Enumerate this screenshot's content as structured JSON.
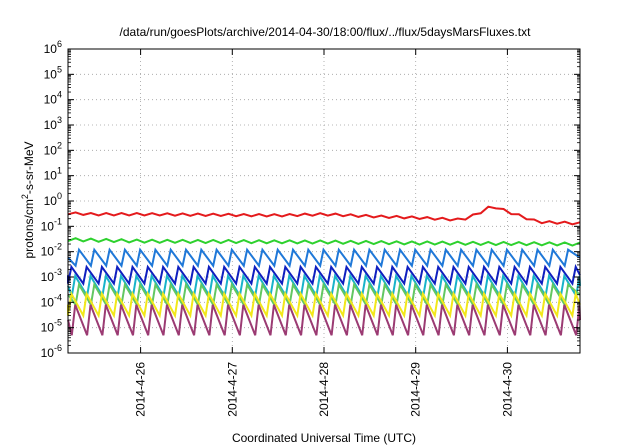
{
  "chart_data": {
    "type": "line",
    "title": "/data/run/goesPlots/archive/2014-04-30/18:00/flux/../flux/5daysMarsFluxes.txt",
    "xlabel": "Coordinated Universal Time (UTC)",
    "ylabel": "protons/cm2-s-sr-MeV",
    "ylabel_parts": {
      "pre": "protons/cm",
      "sup": "2",
      "post": "-s-sr-MeV"
    },
    "yscale": "log",
    "ylim": [
      1e-06,
      1000000.0
    ],
    "y_ticks": [
      {
        "base": "10",
        "exp": "-6"
      },
      {
        "base": "10",
        "exp": "-5"
      },
      {
        "base": "10",
        "exp": "-4"
      },
      {
        "base": "10",
        "exp": "-3"
      },
      {
        "base": "10",
        "exp": "-2"
      },
      {
        "base": "10",
        "exp": "-1"
      },
      {
        "base": "10",
        "exp": "0"
      },
      {
        "base": "10",
        "exp": "1"
      },
      {
        "base": "10",
        "exp": "2"
      },
      {
        "base": "10",
        "exp": "3"
      },
      {
        "base": "10",
        "exp": "4"
      },
      {
        "base": "10",
        "exp": "5"
      },
      {
        "base": "10",
        "exp": "6"
      }
    ],
    "xlim": [
      "2014-04-25 05:00",
      "2014-04-30 19:00"
    ],
    "x_ticks": [
      "2014-4-26",
      "2014-4-27",
      "2014-4-28",
      "2014-4-29",
      "2014-4-30"
    ],
    "grid": true,
    "legend": "none",
    "series": [
      {
        "color": "#e41a1c",
        "x": [
          "2014-04-25 05:00",
          "2014-04-25 12:00",
          "2014-04-26 00:00",
          "2014-04-26 12:00",
          "2014-04-27 00:00",
          "2014-04-27 12:00",
          "2014-04-28 00:00",
          "2014-04-28 12:00",
          "2014-04-29 00:00",
          "2014-04-29 12:00",
          "2014-04-29 16:00",
          "2014-04-29 20:00",
          "2014-04-30 00:00",
          "2014-04-30 08:00",
          "2014-04-30 19:00"
        ],
        "y": [
          0.33,
          0.3,
          0.3,
          0.29,
          0.28,
          0.27,
          0.3,
          0.25,
          0.22,
          0.18,
          0.3,
          0.65,
          0.38,
          0.15,
          0.13
        ]
      },
      {
        "color": "#2ed12e",
        "x": [
          "2014-04-25 05:00",
          "2014-04-26 00:00",
          "2014-04-27 00:00",
          "2014-04-28 00:00",
          "2014-04-29 00:00",
          "2014-04-30 00:00",
          "2014-04-30 19:00"
        ],
        "y": [
          0.03,
          0.026,
          0.025,
          0.024,
          0.022,
          0.021,
          0.02
        ]
      },
      {
        "color": "#1f78d8",
        "y_high": 0.012,
        "y_low": 0.0028
      },
      {
        "color": "#0f1fbf",
        "y_high": 0.0025,
        "y_low": 0.00055
      },
      {
        "color": "#18b3c9",
        "y_high": 0.0011,
        "y_low": 0.00018
      },
      {
        "color": "#62c762",
        "y_high": 0.0005,
        "y_low": 8e-05
      },
      {
        "color": "#f2e81a",
        "y_high": 0.00022,
        "y_low": 3e-05
      },
      {
        "color": "#9b3b73",
        "y_high": 8e-05,
        "y_low": 5e-06
      }
    ]
  }
}
